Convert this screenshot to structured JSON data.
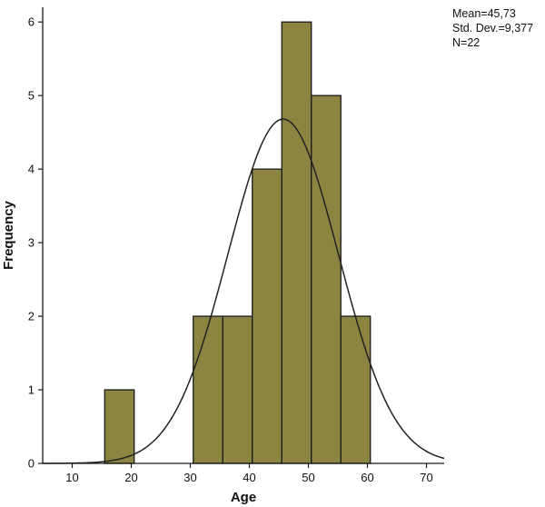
{
  "chart_data": {
    "type": "bar",
    "subtype": "histogram",
    "xlabel": "Age",
    "ylabel": "Frequency",
    "xlim": [
      5,
      73
    ],
    "ylim": [
      0,
      6.2
    ],
    "xticks": [
      10,
      20,
      30,
      40,
      50,
      60,
      70
    ],
    "yticks": [
      0,
      1,
      2,
      3,
      4,
      5,
      6
    ],
    "bins": [
      {
        "x0": 15.5,
        "x1": 20.5,
        "count": 1
      },
      {
        "x0": 30.5,
        "x1": 35.5,
        "count": 2
      },
      {
        "x0": 35.5,
        "x1": 40.5,
        "count": 2
      },
      {
        "x0": 40.5,
        "x1": 45.5,
        "count": 4
      },
      {
        "x0": 45.5,
        "x1": 50.5,
        "count": 6
      },
      {
        "x0": 50.5,
        "x1": 55.5,
        "count": 5
      },
      {
        "x0": 55.5,
        "x1": 60.5,
        "count": 2
      }
    ],
    "normal_curve": {
      "mean": 45.73,
      "sd": 9.377,
      "n": 22,
      "bin_width": 5
    },
    "stats_lines": [
      "Mean=45,73",
      "Std. Dev.=9,377",
      "N=22"
    ],
    "grid": false
  },
  "colors": {
    "bar_fill": "#8c8542",
    "bar_stroke": "#1a1a1a",
    "curve": "#222222",
    "axis": "#1a1a1a",
    "background": "#ffffff"
  }
}
